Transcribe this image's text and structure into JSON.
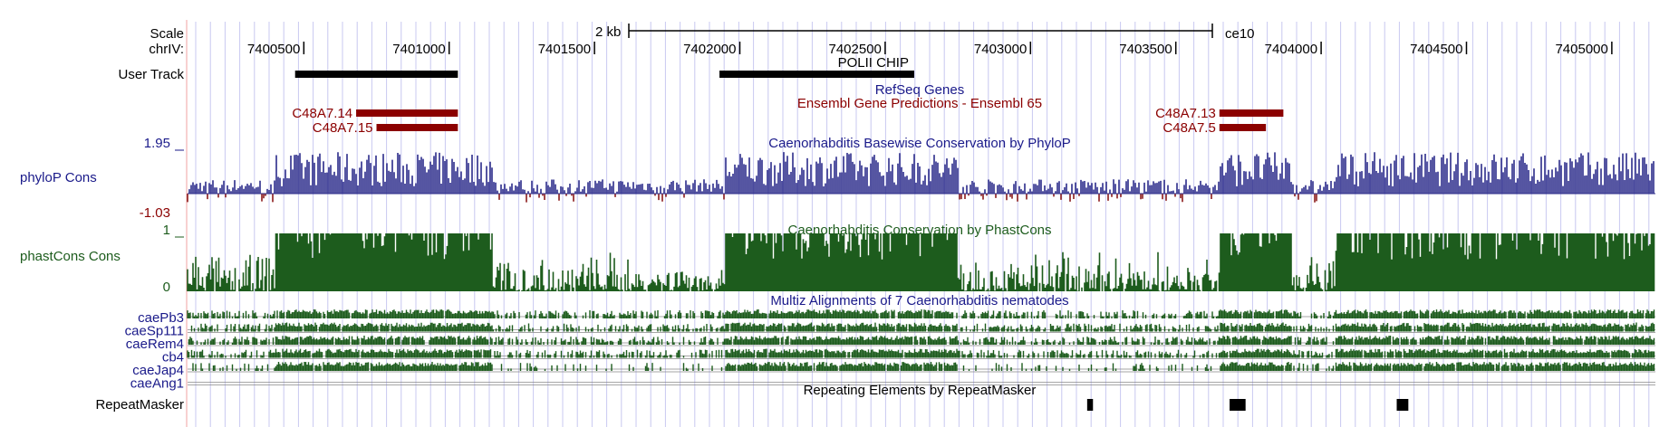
{
  "scale": {
    "label": "Scale",
    "bar_label": "2 kb",
    "assembly": "ce10"
  },
  "ruler": {
    "chrom_label": "chrIV:",
    "start": 7400100,
    "end": 7405150,
    "ticks": [
      {
        "pos": 7400500,
        "label": "7400500"
      },
      {
        "pos": 7401000,
        "label": "7401000"
      },
      {
        "pos": 7401500,
        "label": "7401500"
      },
      {
        "pos": 7402000,
        "label": "7402000"
      },
      {
        "pos": 7402500,
        "label": "7402500"
      },
      {
        "pos": 7403000,
        "label": "7403000"
      },
      {
        "pos": 7403500,
        "label": "7403500"
      },
      {
        "pos": 7404000,
        "label": "7404000"
      },
      {
        "pos": 7404500,
        "label": "7404500"
      },
      {
        "pos": 7405000,
        "label": "7405000"
      }
    ]
  },
  "user_track": {
    "label": "User Track",
    "features": [
      {
        "name": "",
        "start": 7400470,
        "end": 7401030
      },
      {
        "name": "POLII CHIP",
        "start": 7401930,
        "end": 7402600
      }
    ]
  },
  "refseq": {
    "title": "RefSeq Genes"
  },
  "ensembl": {
    "title": "Ensembl Gene Predictions - Ensembl 65",
    "color": "#8b0000",
    "genes": [
      {
        "name": "C48A7.14",
        "start": 7400680,
        "end": 7401030,
        "row": 0
      },
      {
        "name": "C48A7.15",
        "start": 7400750,
        "end": 7401030,
        "row": 1
      },
      {
        "name": "C48A7.13",
        "start": 7403650,
        "end": 7403870,
        "row": 0
      },
      {
        "name": "C48A7.5",
        "start": 7403650,
        "end": 7403810,
        "row": 1
      }
    ]
  },
  "phylop": {
    "label": "phyloP Cons",
    "title": "Caenorhabditis Basewise Conservation by PhyloP",
    "max_label": "1.95",
    "min_label": "-1.03",
    "pos_color": "#2b2b8a",
    "neg_color": "#8b1a1a",
    "conserved_regions": [
      [
        7400400,
        7401150
      ],
      [
        7401950,
        7402750
      ],
      [
        7403650,
        7403900
      ],
      [
        7404050,
        7405150
      ]
    ]
  },
  "phastcons": {
    "label": "phastCons Cons",
    "title": "Caenorhabditis Conservation by PhastCons",
    "max_label": "1",
    "min_label": "0",
    "color": "#1d5c1d",
    "conserved_regions": [
      [
        7400400,
        7401150
      ],
      [
        7401950,
        7402750
      ],
      [
        7403650,
        7403900
      ],
      [
        7404050,
        7405150
      ]
    ]
  },
  "multiz": {
    "title": "Multiz Alignments of 7 Caenorhabditis nematodes",
    "color": "#1d5c1d",
    "species": [
      "caePb3",
      "caeSp111",
      "caeRem4",
      "cb4",
      "caeJap4",
      "caeAng1"
    ]
  },
  "repeatmasker": {
    "label": "RepeatMasker",
    "title": "Repeating Elements by RepeatMasker",
    "elements": [
      {
        "start": 7403195,
        "end": 7403215
      },
      {
        "start": 7403685,
        "end": 7403740
      },
      {
        "start": 7404260,
        "end": 7404300
      }
    ]
  },
  "colors": {
    "title_blue": "#1a1a8a",
    "title_red": "#8b0000",
    "title_green": "#1d5c1d",
    "grid_line": "#c8c8f0",
    "guide_line": "#f0a0a0"
  }
}
